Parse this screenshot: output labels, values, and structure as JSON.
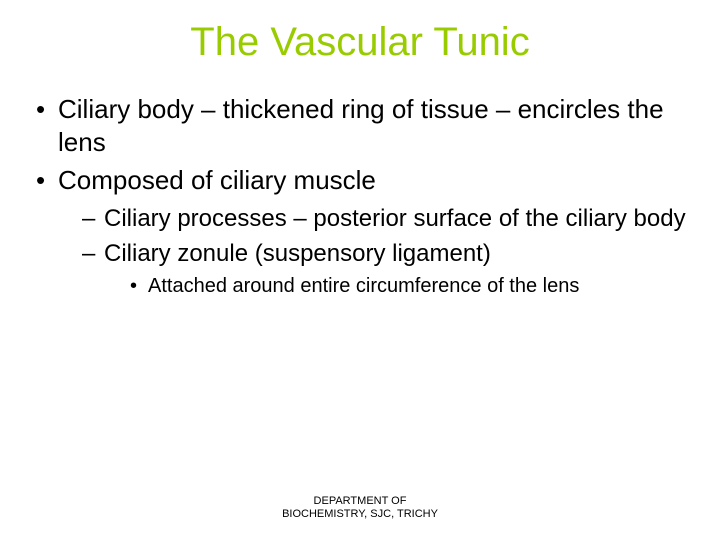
{
  "title": {
    "text": "The Vascular Tunic",
    "color": "#99cc00",
    "fontsize": 40
  },
  "body": {
    "color": "#000000",
    "fontsize_level1": 26,
    "fontsize_level2": 24,
    "fontsize_level3": 20
  },
  "bullets": [
    "Ciliary body – thickened ring of tissue – encircles the lens",
    "Composed of ciliary muscle"
  ],
  "sub_bullets": [
    "Ciliary processes – posterior surface of the ciliary body",
    "Ciliary zonule (suspensory ligament)"
  ],
  "subsub_bullets": [
    "Attached around entire circumference of the lens"
  ],
  "footer": {
    "line1": "DEPARTMENT OF",
    "line2": "BIOCHEMISTRY, SJC, TRICHY",
    "color": "#000000",
    "fontsize": 11
  },
  "background_color": "#ffffff"
}
